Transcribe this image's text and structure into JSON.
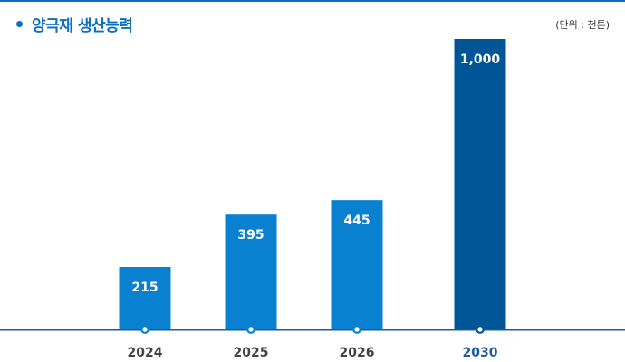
{
  "header": {
    "title": "양극재 생산능력",
    "unit": "(단위 : 천톤)"
  },
  "colors": {
    "accent": "#0a6fc0",
    "bar": "#0a80d0",
    "bar_highlight": "#005596",
    "axis": "#1d5aa0",
    "tick_text": "#444444",
    "tick_highlight": "#1d5aa0"
  },
  "chart_data": {
    "type": "bar",
    "title": "양극재 생산능력",
    "unit": "(단위 : 천톤)",
    "categories": [
      "2024",
      "2025",
      "2026",
      "2030"
    ],
    "values": [
      215,
      395,
      445,
      1000
    ],
    "value_labels": [
      "215",
      "395",
      "445",
      "1,000"
    ],
    "highlight_category": "2030",
    "ylim": [
      0,
      1000
    ],
    "grid": false,
    "legend": "none"
  }
}
